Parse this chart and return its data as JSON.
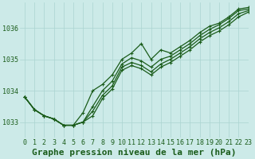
{
  "title": "Graphe pression niveau de la mer (hPa)",
  "bg_color": "#cceae8",
  "grid_color": "#aad4d0",
  "line_color": "#1a5c1a",
  "marker_color": "#1a5c1a",
  "xlim": [
    -0.5,
    23
  ],
  "ylim": [
    1032.5,
    1036.8
  ],
  "yticks": [
    1033,
    1034,
    1035,
    1036
  ],
  "xticks": [
    0,
    1,
    2,
    3,
    4,
    5,
    6,
    7,
    8,
    9,
    10,
    11,
    12,
    13,
    14,
    15,
    16,
    17,
    18,
    19,
    20,
    21,
    22,
    23
  ],
  "series": [
    {
      "y": [
        1033.8,
        1033.4,
        1033.2,
        1033.1,
        1032.9,
        1032.9,
        1033.3,
        1034.0,
        1034.2,
        1034.5,
        1035.0,
        1035.2,
        1035.5,
        1035.0,
        1035.3,
        1035.2,
        1035.4,
        1035.6,
        1035.85,
        1036.05,
        1036.15,
        1036.35,
        1036.6,
        1036.65
      ],
      "markers": true,
      "lw": 0.9
    },
    {
      "y": [
        1033.8,
        1033.4,
        1033.2,
        1033.1,
        1032.9,
        1032.9,
        1033.0,
        1033.5,
        1034.0,
        1034.3,
        1034.85,
        1035.05,
        1034.95,
        1034.75,
        1035.0,
        1035.1,
        1035.3,
        1035.5,
        1035.75,
        1035.95,
        1036.1,
        1036.3,
        1036.55,
        1036.6
      ],
      "markers": true,
      "lw": 0.9
    },
    {
      "y": [
        1033.8,
        1033.4,
        1033.2,
        1033.1,
        1032.9,
        1032.9,
        1033.0,
        1033.35,
        1033.85,
        1034.15,
        1034.75,
        1034.9,
        1034.8,
        1034.6,
        1034.85,
        1035.0,
        1035.2,
        1035.4,
        1035.65,
        1035.85,
        1036.0,
        1036.2,
        1036.45,
        1036.55
      ],
      "markers": true,
      "lw": 0.9
    },
    {
      "y": [
        1033.8,
        1033.4,
        1033.2,
        1033.1,
        1032.9,
        1032.9,
        1033.0,
        1033.2,
        1033.75,
        1034.05,
        1034.65,
        1034.8,
        1034.7,
        1034.5,
        1034.75,
        1034.9,
        1035.1,
        1035.3,
        1035.55,
        1035.75,
        1035.9,
        1036.1,
        1036.35,
        1036.5
      ],
      "markers": true,
      "lw": 0.9
    }
  ],
  "title_fontsize": 8,
  "tick_fontsize": 6
}
